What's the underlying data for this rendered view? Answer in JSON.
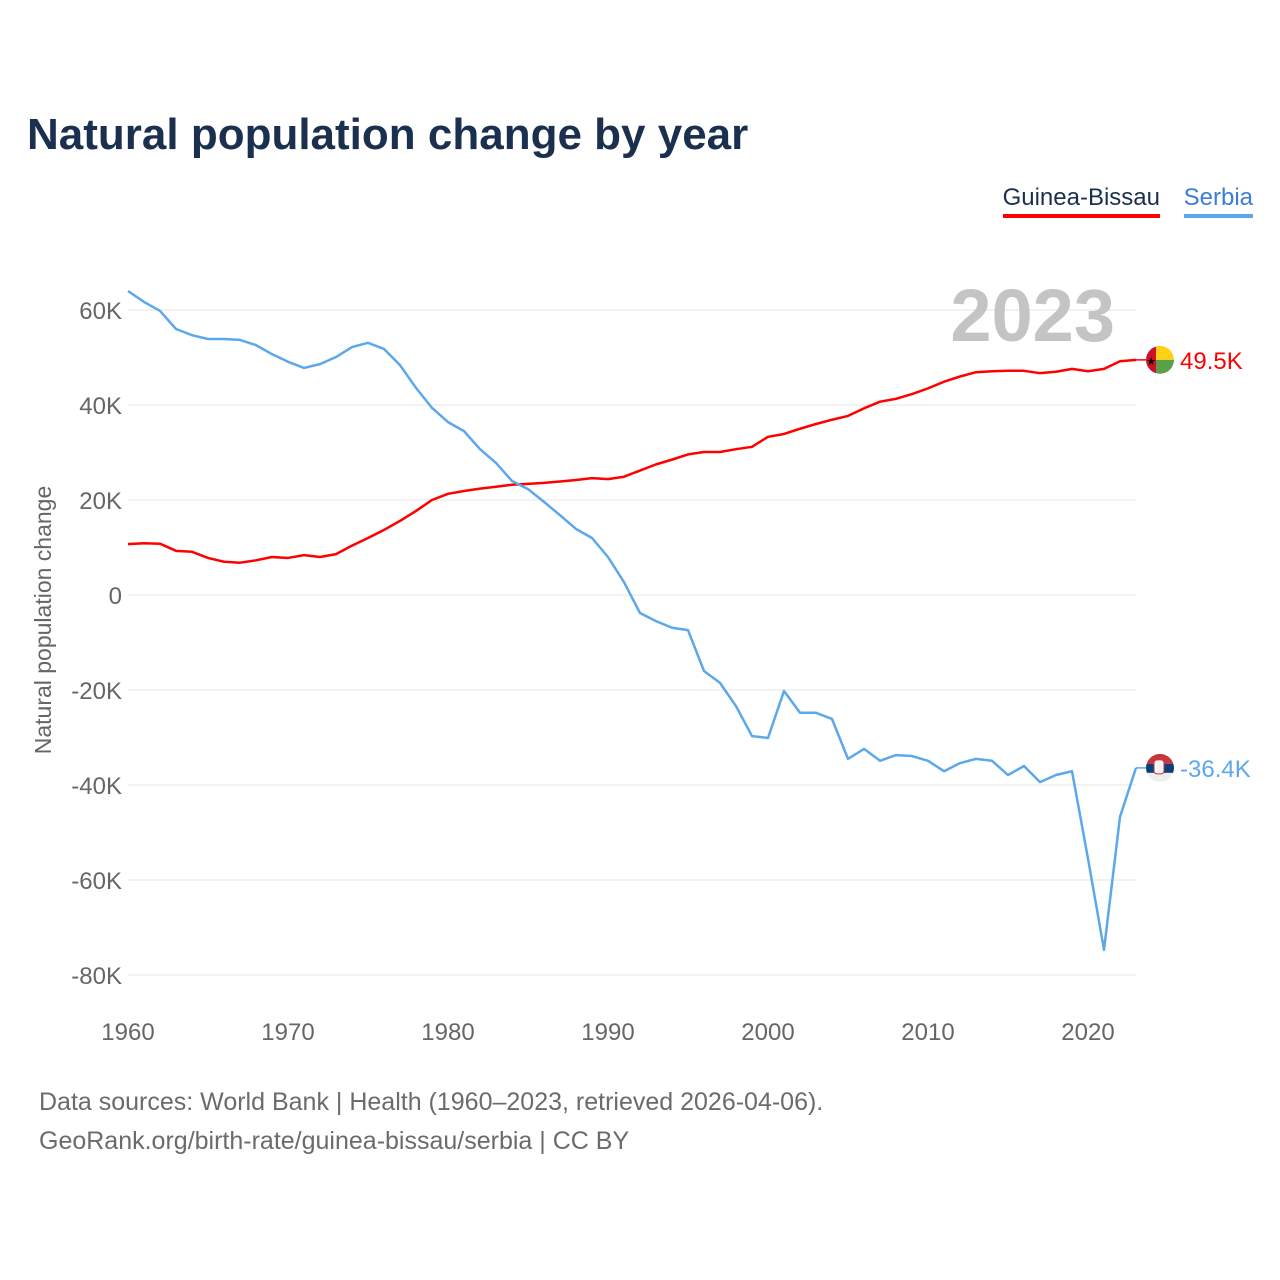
{
  "chart_data": {
    "type": "line",
    "title": "Natural population change by year",
    "ylabel": "Natural population change",
    "xlabel": "",
    "year_label": "2023",
    "ylim": [
      -85,
      70
    ],
    "xlim": [
      1960,
      2023
    ],
    "y_ticks": [
      60,
      40,
      20,
      0,
      -20,
      -40,
      -60,
      -80
    ],
    "y_tick_labels": [
      "60K",
      "40K",
      "20K",
      "0",
      "-20K",
      "-40K",
      "-60K",
      "-80K"
    ],
    "x_ticks": [
      1960,
      1970,
      1980,
      1990,
      2000,
      2010,
      2020
    ],
    "x_tick_labels": [
      "1960",
      "1970",
      "1980",
      "1990",
      "2000",
      "2010",
      "2020"
    ],
    "grid": true,
    "legend_position": "top-right",
    "x": [
      1960,
      1961,
      1962,
      1963,
      1964,
      1965,
      1966,
      1967,
      1968,
      1969,
      1970,
      1971,
      1972,
      1973,
      1974,
      1975,
      1976,
      1977,
      1978,
      1979,
      1980,
      1981,
      1982,
      1983,
      1984,
      1985,
      1986,
      1987,
      1988,
      1989,
      1990,
      1991,
      1992,
      1993,
      1994,
      1995,
      1996,
      1997,
      1998,
      1999,
      2000,
      2001,
      2002,
      2003,
      2004,
      2005,
      2006,
      2007,
      2008,
      2009,
      2010,
      2011,
      2012,
      2013,
      2014,
      2015,
      2016,
      2017,
      2018,
      2019,
      2020,
      2021,
      2022,
      2023
    ],
    "series": [
      {
        "name": "Guinea-Bissau",
        "color": "#ff0000",
        "end_label": "49.5K",
        "values": [
          10.7,
          10.9,
          10.8,
          9.3,
          9.1,
          7.8,
          7.0,
          6.8,
          7.3,
          8.0,
          7.8,
          8.4,
          8.0,
          8.6,
          10.4,
          12.0,
          13.7,
          15.6,
          17.7,
          20.0,
          21.3,
          21.9,
          22.4,
          22.8,
          23.2,
          23.4,
          23.6,
          23.9,
          24.2,
          24.6,
          24.4,
          24.9,
          26.2,
          27.5,
          28.5,
          29.6,
          30.1,
          30.1,
          30.7,
          31.2,
          33.3,
          33.9,
          35.0,
          36.0,
          36.9,
          37.7,
          39.3,
          40.7,
          41.3,
          42.3,
          43.5,
          44.9,
          46.0,
          46.9,
          47.1,
          47.2,
          47.2,
          46.7,
          47.0,
          47.6,
          47.1,
          47.6,
          49.2,
          49.5
        ]
      },
      {
        "name": "Serbia",
        "color": "#5ca8ea",
        "end_label": "-36.4K",
        "values": [
          64.0,
          61.7,
          59.8,
          56.0,
          54.7,
          53.9,
          53.9,
          53.7,
          52.6,
          50.7,
          49.1,
          47.8,
          48.6,
          50.1,
          52.2,
          53.1,
          51.8,
          48.4,
          43.6,
          39.4,
          36.4,
          34.5,
          30.7,
          27.8,
          24.0,
          22.3,
          19.6,
          16.8,
          13.9,
          12.0,
          8.0,
          2.7,
          -3.8,
          -5.5,
          -6.9,
          -7.4,
          -16.0,
          -18.5,
          -23.4,
          -29.7,
          -30.1,
          -20.2,
          -24.8,
          -24.8,
          -26.1,
          -34.5,
          -32.4,
          -34.9,
          -33.7,
          -33.9,
          -34.9,
          -37.1,
          -35.4,
          -34.5,
          -34.9,
          -37.9,
          -36.0,
          -39.4,
          -37.9,
          -37.1,
          -55.5,
          -74.7,
          -46.7,
          -36.4
        ]
      }
    ]
  },
  "sources": {
    "line1": "Data sources: World Bank | Health (1960–2023, retrieved 2026-04-06).",
    "line2": "GeoRank.org/birth-rate/guinea-bissau/serbia | CC BY"
  }
}
